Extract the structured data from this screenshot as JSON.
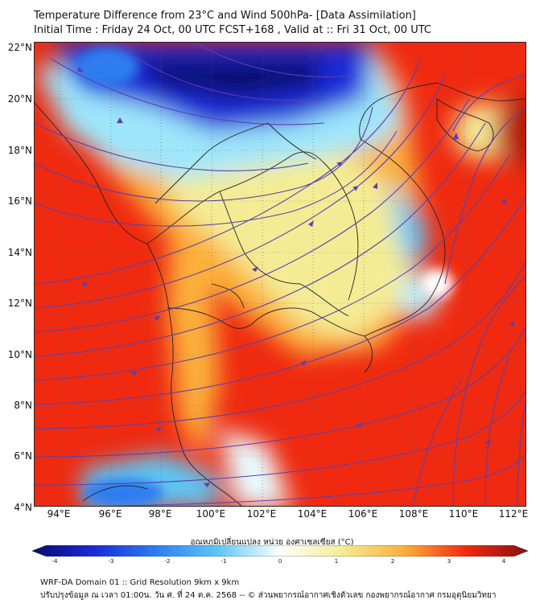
{
  "header": {
    "title_line1": "Temperature Difference from 23°C and Wind 500hPa- [Data Assimilation]",
    "title_line2": "Initial Time : Friday 24 Oct, 00 UTC FCST+168 , Valid at ::  Fri 31 Oct, 00 UTC"
  },
  "map": {
    "lat_labels": [
      "22°N",
      "20°N",
      "18°N",
      "16°N",
      "14°N",
      "12°N",
      "10°N",
      "8°N",
      "6°N",
      "4°N"
    ],
    "lon_labels": [
      "94°E",
      "96°E",
      "98°E",
      "100°E",
      "102°E",
      "104°E",
      "106°E",
      "108°E",
      "110°E",
      "112°E"
    ],
    "streamline_color": "#5a3fb0"
  },
  "colorbar": {
    "title": "อุณหภูมิเปลี่ยนแปลง หน่วย องศาเซลเซียส (°C)",
    "ticks": [
      "-4",
      "-3",
      "-2",
      "-1",
      "0",
      "1",
      "2",
      "3",
      "4"
    ],
    "colors": [
      "#0a0a6e",
      "#1a2ad8",
      "#2f7df0",
      "#5cc8f7",
      "#ffffff",
      "#f4ec94",
      "#fbb03b",
      "#ef2a10",
      "#8c0f0f"
    ]
  },
  "footer": {
    "line1": "WRF-DA Domain 01 :: Grid Resolution 9km x 9km",
    "line2": "ปรับปรุงข้อมูล ณ เวลา 01:00น. วัน ศ. ที่ 24 ต.ค. 2568 -- © ส่วนพยากรณ์อากาศเชิงตัวเลข กองพยากรณ์อากาศ กรมอุตุนิยมวิทยา"
  }
}
